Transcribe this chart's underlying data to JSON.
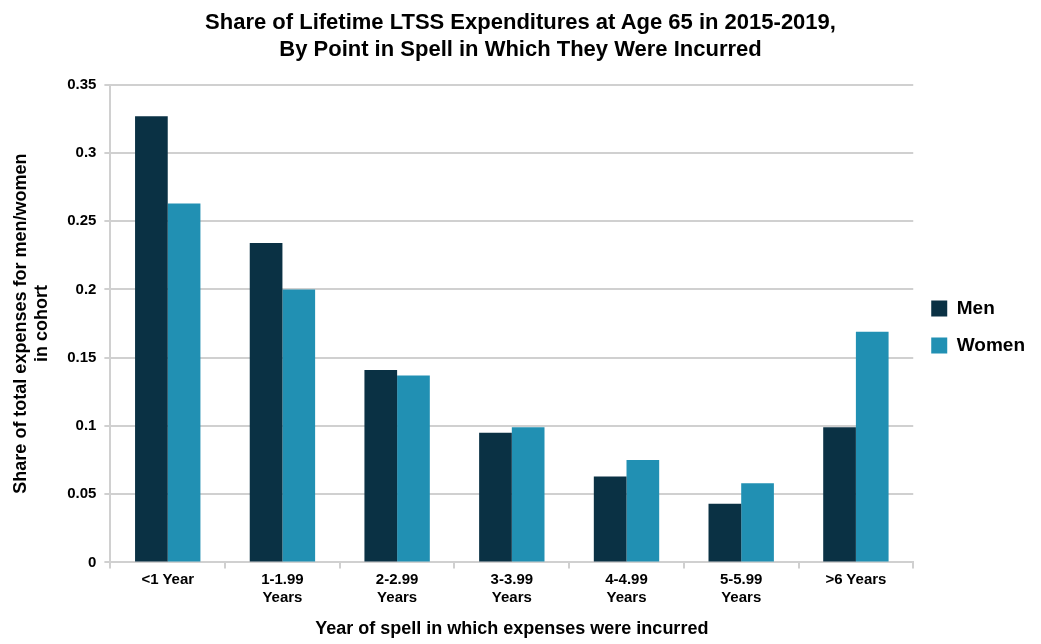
{
  "chart_data": {
    "type": "bar",
    "title": "Share of Lifetime LTSS Expenditures at Age 65 in 2015-2019,\nBy Point in Spell in Which They Were Incurred",
    "xlabel": "Year of spell in which expenses were incurred",
    "ylabel": "Share of total expenses for men/women\nin cohort",
    "categories": [
      "<1 Year",
      "1-1.99\nYears",
      "2-2.99\nYears",
      "3-3.99\nYears",
      "4-4.99\nYears",
      "5-5.99\nYears",
      ">6 Years"
    ],
    "series": [
      {
        "name": "Men",
        "color": "#0a3144",
        "values": [
          0.327,
          0.234,
          0.141,
          0.095,
          0.063,
          0.043,
          0.099
        ]
      },
      {
        "name": "Women",
        "color": "#2190b3",
        "values": [
          0.263,
          0.2,
          0.137,
          0.099,
          0.075,
          0.058,
          0.169
        ]
      }
    ],
    "ylim": [
      0,
      0.35
    ],
    "yticks": [
      0,
      0.05,
      0.1,
      0.15,
      0.2,
      0.25,
      0.3,
      0.35
    ],
    "grid": "y",
    "legend": "right"
  }
}
